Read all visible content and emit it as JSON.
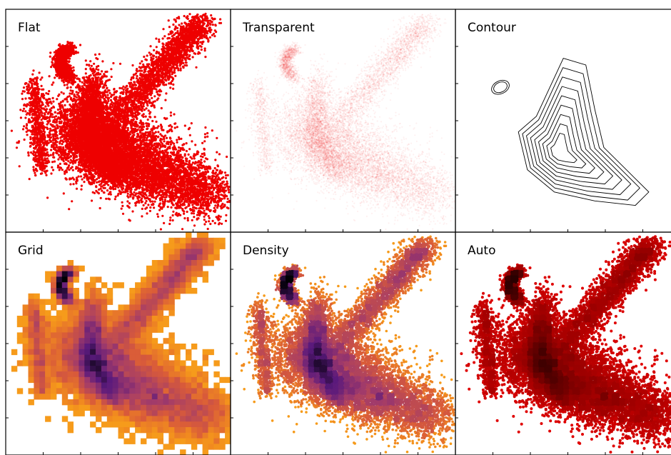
{
  "chart_data": {
    "type": "scatter",
    "layout": "2x3 grid of panels showing the same dense point cloud with different rendering modes",
    "axes_shown": false,
    "tick_labels_shown": false,
    "colors": {
      "flat": "#ee0000",
      "transparent": "#ee0000",
      "contour": "#000000",
      "grid_ramp": [
        "#fcb515",
        "#f28c1e",
        "#d85a3a",
        "#a23b6a",
        "#5a1a7c",
        "#000004"
      ],
      "density_ramp": [
        "#fcb515",
        "#f28c1e",
        "#d85a3a",
        "#a23b6a",
        "#5a1a7c",
        "#000004"
      ],
      "auto_ramp": [
        "#ee0000",
        "#c00000",
        "#800000",
        "#2a0000"
      ]
    },
    "panels": [
      {
        "title": "Flat",
        "mode": "flat"
      },
      {
        "title": "Transparent",
        "mode": "transparent"
      },
      {
        "title": "Contour",
        "mode": "contour"
      },
      {
        "title": "Grid",
        "mode": "grid"
      },
      {
        "title": "Density",
        "mode": "density"
      },
      {
        "title": "Auto",
        "mode": "auto"
      }
    ]
  }
}
